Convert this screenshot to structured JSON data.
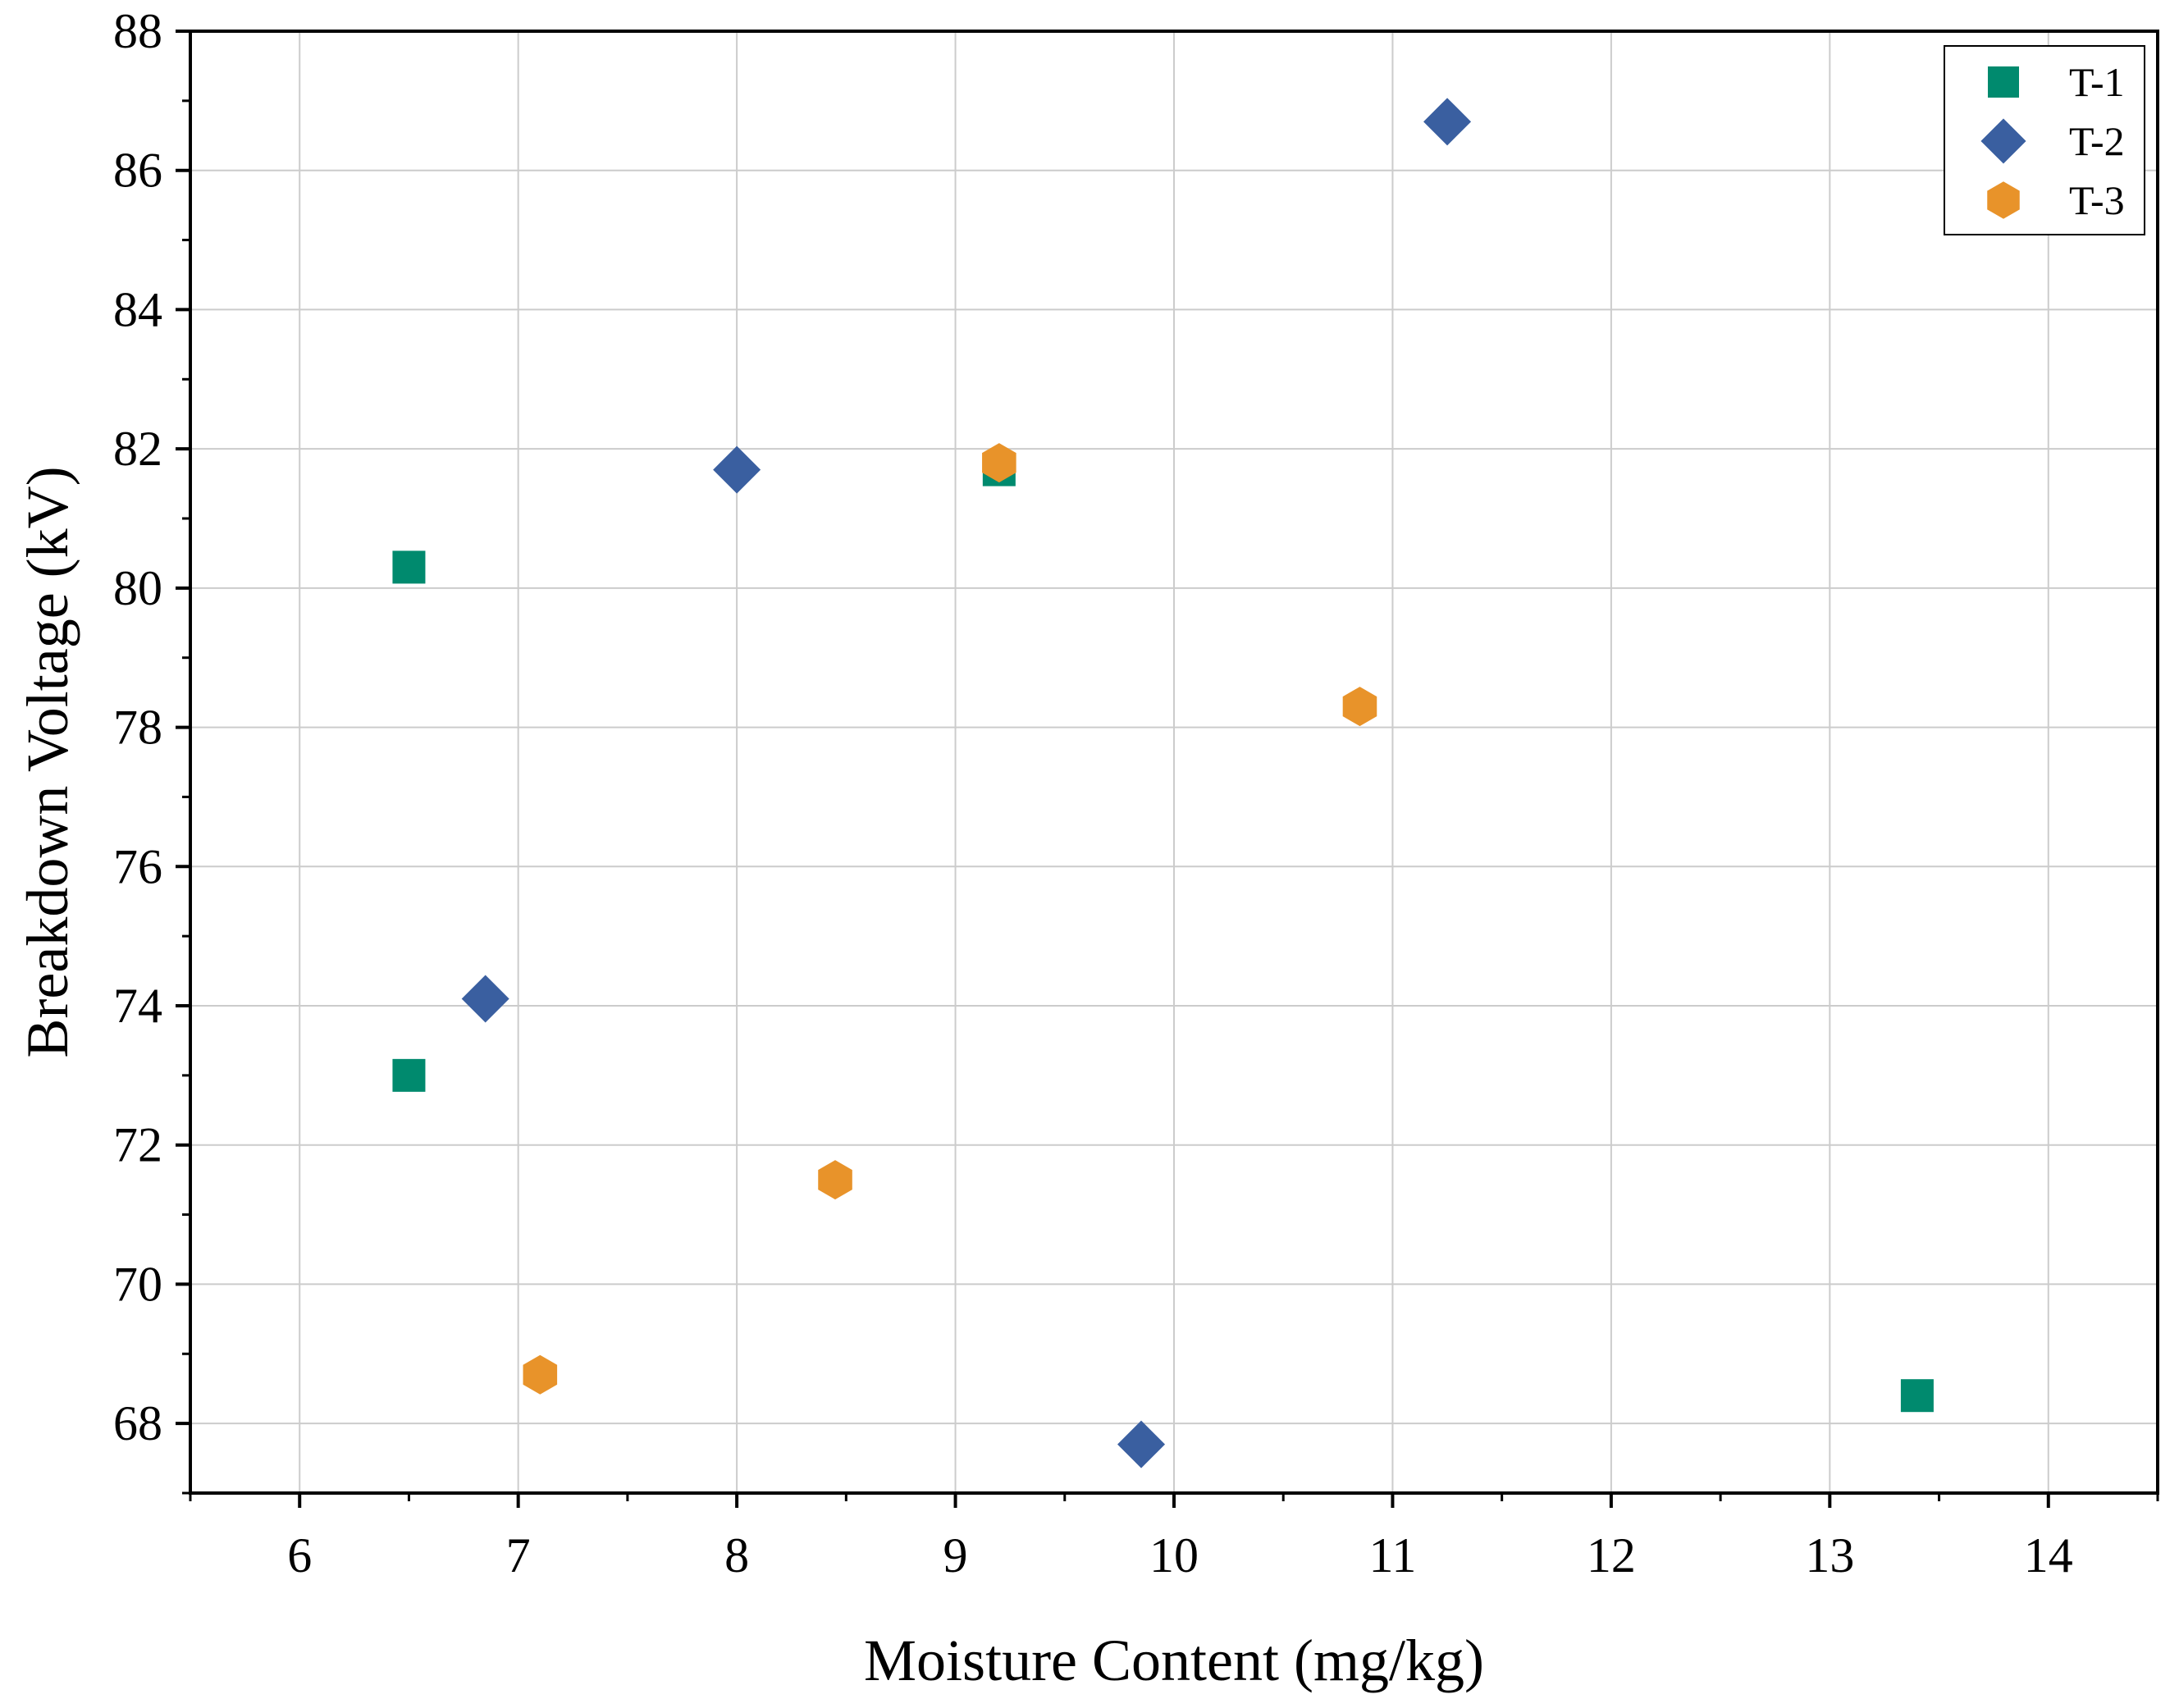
{
  "chart_data": {
    "type": "scatter",
    "title": "",
    "xlabel": "Moisture Content (mg/kg)",
    "ylabel": "Breakdown Voltage (kV)",
    "xlim": [
      5.5,
      14.5
    ],
    "ylim": [
      67,
      88
    ],
    "xticks": [
      6,
      7,
      8,
      9,
      10,
      11,
      12,
      13,
      14
    ],
    "yticks": [
      68,
      70,
      72,
      74,
      76,
      78,
      80,
      82,
      84,
      86,
      88
    ],
    "grid": true,
    "legend_position": "top-right",
    "series": [
      {
        "name": "T-1",
        "marker": "square",
        "color": "#008a6e",
        "points": [
          [
            6.5,
            80.3
          ],
          [
            6.5,
            73.0
          ],
          [
            9.2,
            81.7
          ],
          [
            13.4,
            68.4
          ]
        ]
      },
      {
        "name": "T-2",
        "marker": "diamond",
        "color": "#3a5fa0",
        "points": [
          [
            8.0,
            81.7
          ],
          [
            6.85,
            74.1
          ],
          [
            11.25,
            86.7
          ],
          [
            9.85,
            67.7
          ]
        ]
      },
      {
        "name": "T-3",
        "marker": "hexagon",
        "color": "#e8932a",
        "points": [
          [
            9.2,
            81.8
          ],
          [
            10.85,
            78.3
          ],
          [
            8.45,
            71.5
          ],
          [
            7.1,
            68.7
          ]
        ]
      }
    ]
  }
}
